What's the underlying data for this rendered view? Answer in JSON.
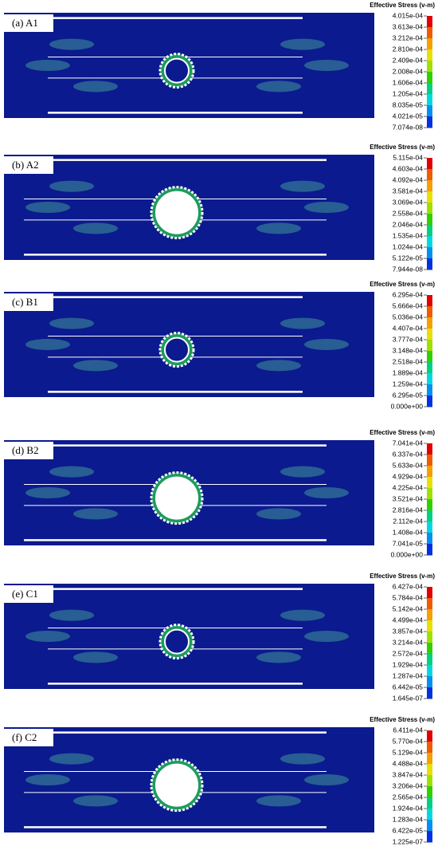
{
  "panels": [
    {
      "label": "(a) A1",
      "colorbar_title": "Effective Stress (v-m)",
      "ticks": [
        "4.015e-04",
        "3.613e-04",
        "3.212e-04",
        "2.810e-04",
        "2.409e-04",
        "2.008e-04",
        "1.606e-04",
        "1.205e-04",
        "8.035e-05",
        "4.021e-05",
        "7.074e-08"
      ]
    },
    {
      "label": "(b) A2",
      "colorbar_title": "Effective Stress (v-m)",
      "ticks": [
        "5.115e-04",
        "4.603e-04",
        "4.092e-04",
        "3.581e-04",
        "3.069e-04",
        "2.558e-04",
        "2.046e-04",
        "1.535e-04",
        "1.024e-04",
        "5.122e-05",
        "7.944e-08"
      ]
    },
    {
      "label": "(c) B1",
      "colorbar_title": "Effective Stress (v-m)",
      "ticks": [
        "6.295e-04",
        "5.666e-04",
        "5.036e-04",
        "4.407e-04",
        "3.777e-04",
        "3.148e-04",
        "2.518e-04",
        "1.889e-04",
        "1.259e-04",
        "6.295e-05",
        "0.000e+00"
      ]
    },
    {
      "label": "(d) B2",
      "colorbar_title": "Effective Stress (v-m)",
      "ticks": [
        "7.041e-04",
        "6.337e-04",
        "5.633e-04",
        "4.929e-04",
        "4.225e-04",
        "3.521e-04",
        "2.816e-04",
        "2.112e-04",
        "1.408e-04",
        "7.041e-05",
        "0.000e+00"
      ]
    },
    {
      "label": "(e) C1",
      "colorbar_title": "Effective Stress (v-m)",
      "ticks": [
        "6.427e-04",
        "5.784e-04",
        "5.142e-04",
        "4.499e-04",
        "3.857e-04",
        "3.214e-04",
        "2.572e-04",
        "1.929e-04",
        "1.287e-04",
        "6.442e-05",
        "1.645e-07"
      ]
    },
    {
      "label": "(f) C2",
      "colorbar_title": "Effective Stress (v-m)",
      "ticks": [
        "6.411e-04",
        "5.770e-04",
        "5.129e-04",
        "4.488e-04",
        "3.847e-04",
        "3.206e-04",
        "2.565e-04",
        "1.924e-04",
        "1.283e-04",
        "6.422e-05",
        "1.225e-07"
      ]
    }
  ]
}
